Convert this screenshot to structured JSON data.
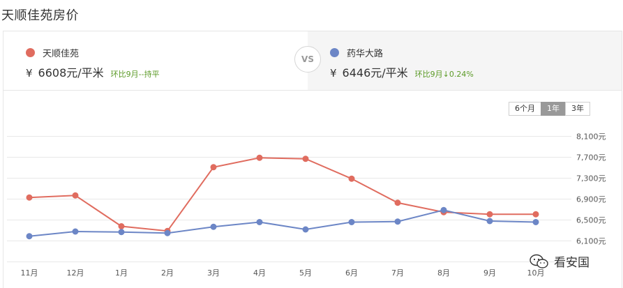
{
  "page": {
    "title": "天顺佳苑房价"
  },
  "compare": {
    "vs_label": "VS",
    "left": {
      "name": "天顺佳苑",
      "currency": "¥",
      "price": "6608元/平米",
      "change": "环比9月--持平",
      "color": "#e06c5f"
    },
    "right": {
      "name": "药华大路",
      "currency": "¥",
      "price": "6446元/平米",
      "change": "环比9月↓0.24%",
      "color": "#6c86c6"
    }
  },
  "range_toggle": {
    "options": [
      "6个月",
      "1年",
      "3年"
    ],
    "selected": "1年"
  },
  "watermark": {
    "text": "看安国"
  },
  "chart_data": {
    "type": "line",
    "categories": [
      "11月",
      "12月",
      "1月",
      "2月",
      "3月",
      "4月",
      "5月",
      "6月",
      "7月",
      "8月",
      "9月",
      "10月"
    ],
    "y_tick_labels": [
      "8,100元",
      "7,700元",
      "7,300元",
      "6,900元",
      "6,500元",
      "6,100元"
    ],
    "y_ticks": [
      8100,
      7700,
      7300,
      6900,
      6500,
      6100
    ],
    "ylim": [
      5700,
      8100
    ],
    "grid": true,
    "series": [
      {
        "name": "天顺佳苑",
        "color": "#e06c5f",
        "values": [
          6930,
          6970,
          6380,
          6290,
          7510,
          7690,
          7670,
          7290,
          6830,
          6650,
          6610,
          6610
        ]
      },
      {
        "name": "药华大路",
        "color": "#6c86c6",
        "values": [
          6190,
          6280,
          6270,
          6250,
          6370,
          6460,
          6320,
          6460,
          6470,
          6690,
          6480,
          6460
        ]
      }
    ]
  }
}
